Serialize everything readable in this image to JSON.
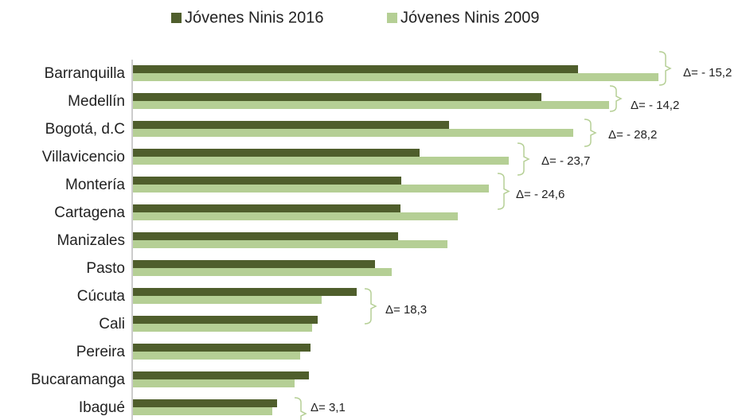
{
  "chart_data": {
    "type": "bar",
    "orientation": "horizontal",
    "categories": [
      "Barranquilla",
      "Medellín",
      "Bogotá, d.C",
      "Villavicencio",
      "Montería",
      "Cartagena",
      "Manizales",
      "Pasto",
      "Cúcuta",
      "Cali",
      "Pereira",
      "Bucaramanga",
      "Ibagué"
    ],
    "series": [
      {
        "name": "Jóvenes Ninis 2016",
        "color": "#4f5e2c",
        "values": [
          559,
          513,
          397,
          360,
          337,
          336,
          333,
          304,
          281,
          232,
          223,
          221,
          181
        ]
      },
      {
        "name": "Jóvenes Ninis 2009",
        "color": "#b5cf95",
        "values": [
          660,
          598,
          553,
          472,
          447,
          408,
          395,
          325,
          237,
          225,
          210,
          203,
          175
        ]
      }
    ],
    "annotations": [
      "Δ= - 15,2",
      "Δ= - 14,2",
      "Δ= - 28,2",
      "Δ= - 23,7",
      "Δ= - 24,6",
      "Δ= 18,3",
      "Δ= 3,1"
    ],
    "legend": "top"
  }
}
